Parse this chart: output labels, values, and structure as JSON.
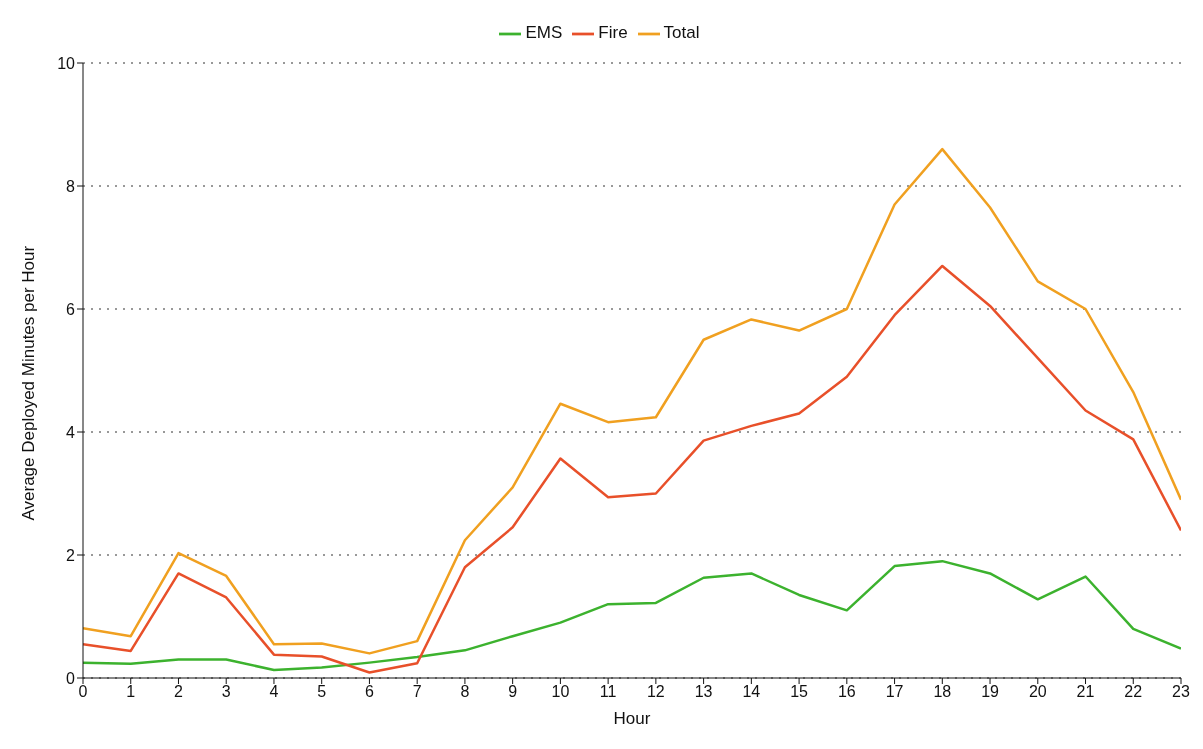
{
  "chart_data": {
    "type": "line",
    "xlabel": "Hour",
    "ylabel": "Average Deployed Minutes per Hour",
    "x": [
      0,
      1,
      2,
      3,
      4,
      5,
      6,
      7,
      8,
      9,
      10,
      11,
      12,
      13,
      14,
      15,
      16,
      17,
      18,
      19,
      20,
      21,
      22,
      23
    ],
    "xlim": [
      0,
      23
    ],
    "xticks": [
      0,
      1,
      2,
      3,
      4,
      5,
      6,
      7,
      8,
      9,
      10,
      11,
      12,
      13,
      14,
      15,
      16,
      17,
      18,
      19,
      20,
      21,
      22,
      23
    ],
    "ylim": [
      0,
      10
    ],
    "yticks": [
      0,
      2,
      4,
      6,
      8,
      10
    ],
    "grid": "y",
    "legend": "top",
    "marker": "none",
    "line_style": "solid",
    "series": [
      {
        "name": "EMS",
        "color": "#3cb22e",
        "values": [
          0.25,
          0.23,
          0.3,
          0.3,
          0.13,
          0.17,
          0.25,
          0.34,
          0.45,
          0.68,
          0.9,
          1.2,
          1.22,
          1.63,
          1.7,
          1.35,
          1.1,
          1.82,
          1.9,
          1.7,
          1.28,
          1.65,
          0.8,
          0.48
        ]
      },
      {
        "name": "Fire",
        "color": "#e8502a",
        "values": [
          0.55,
          0.44,
          1.7,
          1.31,
          0.38,
          0.35,
          0.09,
          0.24,
          1.8,
          2.45,
          3.57,
          2.94,
          3.0,
          3.86,
          4.1,
          4.3,
          4.9,
          5.9,
          6.7,
          6.05,
          5.2,
          4.35,
          3.88,
          2.4
        ]
      },
      {
        "name": "Total",
        "color": "#f0a020",
        "values": [
          0.81,
          0.68,
          2.03,
          1.66,
          0.55,
          0.56,
          0.4,
          0.6,
          2.24,
          3.1,
          4.46,
          4.16,
          4.24,
          5.5,
          5.83,
          5.65,
          6.0,
          7.7,
          8.6,
          7.65,
          6.45,
          6.0,
          4.65,
          2.9
        ]
      }
    ]
  }
}
